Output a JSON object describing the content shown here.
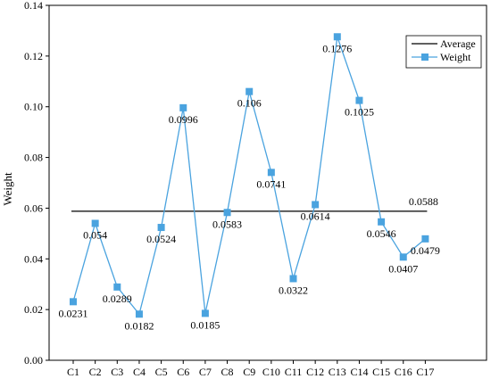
{
  "chart_data": {
    "type": "line",
    "ylabel": "Weight",
    "xlabel": "",
    "ylim": [
      0,
      0.14
    ],
    "yticks": [
      "0.00",
      "0.02",
      "0.04",
      "0.06",
      "0.08",
      "0.10",
      "0.12",
      "0.14"
    ],
    "categories": [
      "C1",
      "C2",
      "C3",
      "C4",
      "C5",
      "C6",
      "C7",
      "C8",
      "C9",
      "C10",
      "C11",
      "C12",
      "C13",
      "C14",
      "C15",
      "C16",
      "C17"
    ],
    "series": [
      {
        "name": "Weight",
        "color": "#4aa3df",
        "marker": "square",
        "values": [
          0.0231,
          0.054,
          0.0289,
          0.0182,
          0.0524,
          0.0996,
          0.0185,
          0.0583,
          0.106,
          0.0741,
          0.0322,
          0.0614,
          0.1276,
          0.1025,
          0.0546,
          0.0407,
          0.0479
        ],
        "labels": [
          "0.0231",
          "0.054",
          "0.0289",
          "0.0182",
          "0.0524",
          "0.0996",
          "0.0185",
          "0.0583",
          "0.106",
          "0.0741",
          "0.0322",
          "0.0614",
          "0.1276",
          "0.1025",
          "0.0546",
          "0.0407",
          "0.0479"
        ]
      }
    ],
    "reference_line": {
      "name": "Average",
      "value": 0.0588,
      "label": "0.0588",
      "color": "#000000"
    },
    "legend": {
      "position": "top-right"
    },
    "grid": false
  }
}
